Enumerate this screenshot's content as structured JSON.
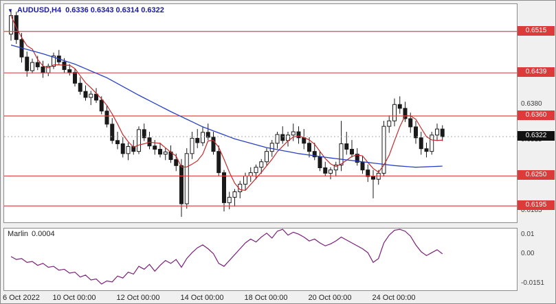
{
  "header": {
    "symbol_period": "AUDUSD,H4",
    "ohlc_text": "0.6336 0.6343 0.6314 0.6322"
  },
  "colors": {
    "level_line": "#e04545",
    "level_badge_bg": "#dd3a3a",
    "current_badge_bg": "#111111",
    "ma_fast": "#c62828",
    "ma_slow": "#2741c6",
    "indicator_line": "#7b1f7b",
    "candle_up_fill": "#ffffff",
    "candle_down_fill": "#1a1a1a",
    "candle_stroke": "#1a1a1a",
    "header_text": "#1a18a8"
  },
  "chart_data": {
    "type": "candlestick",
    "title": "AUDUSD,H4",
    "symbol": "AUDUSD",
    "timeframe": "H4",
    "current": {
      "open": 0.6336,
      "high": 0.6343,
      "low": 0.6314,
      "close": 0.6322
    },
    "current_price": "0.6322",
    "levels": [
      "0.6515",
      "0.6439",
      "0.6360",
      "0.6250",
      "0.6195"
    ],
    "y_axis": {
      "min": 0.6165,
      "max": 0.6565,
      "plain_labels": [
        "0.6380",
        "0.6315",
        "0.6185"
      ]
    },
    "x_ticks": [
      {
        "candle": 0,
        "label": "6 Oct 2022"
      },
      {
        "candle": 12,
        "label": "10 Oct 00:00"
      },
      {
        "candle": 24,
        "label": "12 Oct 00:00"
      },
      {
        "candle": 36,
        "label": "14 Oct 00:00"
      },
      {
        "candle": 48,
        "label": "18 Oct 00:00"
      },
      {
        "candle": 60,
        "label": "20 Oct 00:00"
      },
      {
        "candle": 72,
        "label": "24 Oct 00:00"
      }
    ],
    "ma_fast_period": 5,
    "ma_slow_points": [
      [
        0,
        0.649
      ],
      [
        6,
        0.6474
      ],
      [
        12,
        0.6455
      ],
      [
        18,
        0.643
      ],
      [
        24,
        0.6398
      ],
      [
        30,
        0.6368
      ],
      [
        36,
        0.634
      ],
      [
        42,
        0.6318
      ],
      [
        48,
        0.6302
      ],
      [
        54,
        0.6291
      ],
      [
        60,
        0.6283
      ],
      [
        66,
        0.6276
      ],
      [
        72,
        0.6269
      ],
      [
        76,
        0.6266
      ],
      [
        81,
        0.6268
      ]
    ],
    "candles": [
      [
        0.651,
        0.6553,
        0.6498,
        0.6544
      ],
      [
        0.6544,
        0.6551,
        0.6492,
        0.65
      ],
      [
        0.65,
        0.6512,
        0.6458,
        0.6468
      ],
      [
        0.6468,
        0.6478,
        0.6432,
        0.6443
      ],
      [
        0.6443,
        0.6465,
        0.6438,
        0.6458
      ],
      [
        0.6458,
        0.647,
        0.6444,
        0.645
      ],
      [
        0.645,
        0.6461,
        0.643,
        0.6439
      ],
      [
        0.6439,
        0.6456,
        0.6433,
        0.6451
      ],
      [
        0.6451,
        0.6476,
        0.6446,
        0.647
      ],
      [
        0.647,
        0.6481,
        0.6454,
        0.6459
      ],
      [
        0.6459,
        0.6466,
        0.6439,
        0.6445
      ],
      [
        0.6445,
        0.6455,
        0.6434,
        0.644
      ],
      [
        0.644,
        0.6446,
        0.6414,
        0.642
      ],
      [
        0.642,
        0.6431,
        0.6399,
        0.6405
      ],
      [
        0.6405,
        0.6416,
        0.6388,
        0.6394
      ],
      [
        0.6394,
        0.6406,
        0.638,
        0.64
      ],
      [
        0.64,
        0.6411,
        0.6384,
        0.6389
      ],
      [
        0.6389,
        0.6396,
        0.6363,
        0.6369
      ],
      [
        0.6369,
        0.638,
        0.6339,
        0.6345
      ],
      [
        0.6345,
        0.6356,
        0.6309,
        0.6315
      ],
      [
        0.6315,
        0.6331,
        0.6299,
        0.6309
      ],
      [
        0.6309,
        0.6321,
        0.6284,
        0.6291
      ],
      [
        0.6291,
        0.6311,
        0.6279,
        0.6304
      ],
      [
        0.6304,
        0.6316,
        0.6289,
        0.6295
      ],
      [
        0.6295,
        0.6341,
        0.629,
        0.6335
      ],
      [
        0.6335,
        0.6346,
        0.6314,
        0.632
      ],
      [
        0.632,
        0.6331,
        0.6299,
        0.6305
      ],
      [
        0.6305,
        0.6316,
        0.6289,
        0.6299
      ],
      [
        0.6299,
        0.6311,
        0.6284,
        0.629
      ],
      [
        0.629,
        0.6301,
        0.6279,
        0.6294
      ],
      [
        0.6294,
        0.6306,
        0.6274,
        0.628
      ],
      [
        0.628,
        0.6291,
        0.6259,
        0.6269
      ],
      [
        0.6269,
        0.6281,
        0.6175,
        0.6199
      ],
      [
        0.6199,
        0.6301,
        0.619,
        0.6291
      ],
      [
        0.6291,
        0.6331,
        0.6281,
        0.6319
      ],
      [
        0.6319,
        0.6336,
        0.6301,
        0.6311
      ],
      [
        0.6311,
        0.6341,
        0.6305,
        0.633
      ],
      [
        0.633,
        0.6346,
        0.6316,
        0.6321
      ],
      [
        0.6321,
        0.6331,
        0.6289,
        0.6295
      ],
      [
        0.6295,
        0.6306,
        0.6249,
        0.6256
      ],
      [
        0.6256,
        0.6261,
        0.6185,
        0.6201
      ],
      [
        0.6201,
        0.6221,
        0.6189,
        0.6211
      ],
      [
        0.6211,
        0.6226,
        0.6194,
        0.6221
      ],
      [
        0.6221,
        0.6241,
        0.6209,
        0.6235
      ],
      [
        0.6235,
        0.6256,
        0.6224,
        0.625
      ],
      [
        0.625,
        0.6266,
        0.6239,
        0.6256
      ],
      [
        0.6256,
        0.6271,
        0.6244,
        0.6266
      ],
      [
        0.6266,
        0.6281,
        0.6254,
        0.6276
      ],
      [
        0.6276,
        0.6301,
        0.6269,
        0.6295
      ],
      [
        0.6295,
        0.6316,
        0.6285,
        0.631
      ],
      [
        0.631,
        0.6331,
        0.63,
        0.6326
      ],
      [
        0.6326,
        0.6341,
        0.6309,
        0.6315
      ],
      [
        0.6315,
        0.6331,
        0.6304,
        0.6325
      ],
      [
        0.6325,
        0.6346,
        0.6314,
        0.6331
      ],
      [
        0.6331,
        0.6341,
        0.6309,
        0.632
      ],
      [
        0.632,
        0.6336,
        0.6299,
        0.631
      ],
      [
        0.631,
        0.6321,
        0.6284,
        0.6295
      ],
      [
        0.6295,
        0.6311,
        0.6279,
        0.6285
      ],
      [
        0.6285,
        0.6296,
        0.6259,
        0.6265
      ],
      [
        0.6265,
        0.6276,
        0.6249,
        0.6255
      ],
      [
        0.6255,
        0.6266,
        0.6244,
        0.6261
      ],
      [
        0.6261,
        0.6276,
        0.6249,
        0.627
      ],
      [
        0.627,
        0.6351,
        0.6259,
        0.6309
      ],
      [
        0.6309,
        0.6331,
        0.6289,
        0.6299
      ],
      [
        0.6299,
        0.6316,
        0.6284,
        0.629
      ],
      [
        0.629,
        0.6301,
        0.6269,
        0.6275
      ],
      [
        0.6275,
        0.6286,
        0.6254,
        0.6261
      ],
      [
        0.6261,
        0.6271,
        0.6239,
        0.6249
      ],
      [
        0.6249,
        0.6261,
        0.6209,
        0.6244
      ],
      [
        0.6244,
        0.6261,
        0.6234,
        0.6255
      ],
      [
        0.6255,
        0.6351,
        0.6249,
        0.6341
      ],
      [
        0.6341,
        0.6361,
        0.6329,
        0.6351
      ],
      [
        0.6351,
        0.6392,
        0.6341,
        0.6381
      ],
      [
        0.6381,
        0.6396,
        0.6364,
        0.6374
      ],
      [
        0.6374,
        0.6386,
        0.6349,
        0.6355
      ],
      [
        0.6355,
        0.6366,
        0.6329,
        0.634
      ],
      [
        0.634,
        0.6351,
        0.6309,
        0.632
      ],
      [
        0.632,
        0.6331,
        0.6289,
        0.63
      ],
      [
        0.63,
        0.6311,
        0.6284,
        0.6295
      ],
      [
        0.6295,
        0.6331,
        0.6289,
        0.6325
      ],
      [
        0.6325,
        0.6346,
        0.6314,
        0.6336
      ],
      [
        0.6336,
        0.6343,
        0.6314,
        0.6322
      ]
    ],
    "indicator": {
      "name": "Marlin",
      "current_value": "0.0004",
      "y_axis": {
        "min": -0.0183,
        "max": 0.0134,
        "labels": [
          {
            "value": 0.01,
            "label": "0.01"
          },
          {
            "value": 0.0,
            "label": "0.00"
          },
          {
            "value": -0.0151,
            "label": "-0.0151"
          }
        ]
      },
      "values": [
        -0.001,
        -0.0025,
        -0.002,
        -0.004,
        -0.0035,
        -0.0055,
        -0.0045,
        -0.0065,
        -0.006,
        -0.008,
        -0.0075,
        -0.0095,
        -0.009,
        -0.0115,
        -0.0105,
        -0.013,
        -0.0125,
        -0.0151,
        -0.0135,
        -0.014,
        -0.011,
        -0.012,
        -0.009,
        -0.01,
        -0.006,
        -0.0075,
        -0.005,
        -0.0085,
        -0.0055,
        -0.003,
        -0.0045,
        -0.0025,
        -0.0065,
        -0.002,
        0.001,
        0.0035,
        0.005,
        0.003,
        0.0005,
        -0.0045,
        -0.006,
        -0.003,
        0.0,
        0.003,
        0.006,
        0.008,
        0.0065,
        0.009,
        0.011,
        0.0085,
        0.012,
        0.013,
        0.01,
        0.0115,
        0.0105,
        0.009,
        0.007,
        0.008,
        0.006,
        0.0045,
        0.0055,
        0.007,
        0.009,
        0.0075,
        0.006,
        0.0045,
        0.003,
        0.001,
        -0.004,
        -0.002,
        0.006,
        0.01,
        0.0125,
        0.013,
        0.012,
        0.0095,
        0.005,
        0.0015,
        -0.0005,
        0.001,
        0.0025,
        0.0004
      ]
    }
  }
}
